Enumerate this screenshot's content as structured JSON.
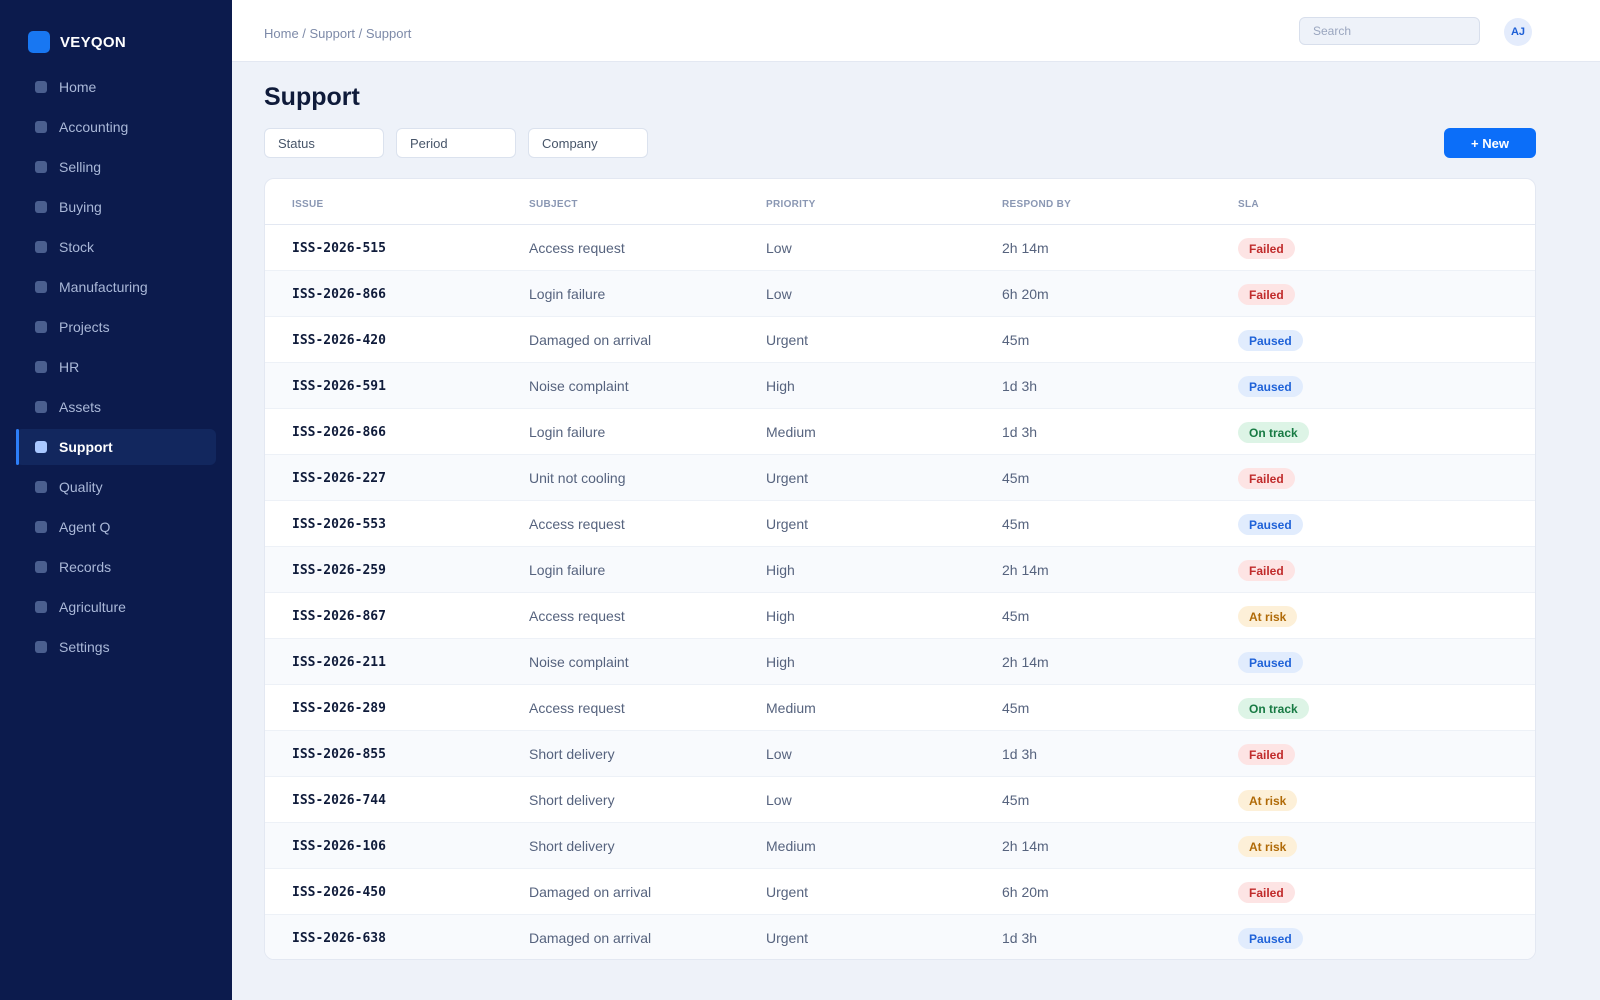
{
  "brand": {
    "name": "VEYQON"
  },
  "sidebar": {
    "items": [
      {
        "label": "Home",
        "name": "home"
      },
      {
        "label": "Accounting",
        "name": "accounting"
      },
      {
        "label": "Selling",
        "name": "selling"
      },
      {
        "label": "Buying",
        "name": "buying"
      },
      {
        "label": "Stock",
        "name": "stock"
      },
      {
        "label": "Manufacturing",
        "name": "manufacturing"
      },
      {
        "label": "Projects",
        "name": "projects"
      },
      {
        "label": "HR",
        "name": "hr"
      },
      {
        "label": "Assets",
        "name": "assets"
      },
      {
        "label": "Support",
        "name": "support",
        "active": true
      },
      {
        "label": "Quality",
        "name": "quality"
      },
      {
        "label": "Agent Q",
        "name": "agent-q"
      },
      {
        "label": "Records",
        "name": "records"
      },
      {
        "label": "Agriculture",
        "name": "agriculture"
      },
      {
        "label": "Settings",
        "name": "settings"
      }
    ]
  },
  "header": {
    "breadcrumb": "Home / Support / Support",
    "search_placeholder": "Search",
    "avatar_initials": "AJ"
  },
  "main": {
    "title": "Support",
    "filters": [
      "Status",
      "Period",
      "Company"
    ],
    "new_label": "+ New"
  },
  "table": {
    "columns": [
      "ISSUE",
      "SUBJECT",
      "PRIORITY",
      "RESPOND BY",
      "SLA"
    ],
    "rows": [
      {
        "issue": "ISS-2026-515",
        "subject": "Access request",
        "priority": "Low",
        "respond_by": "2h 14m",
        "sla": "Failed"
      },
      {
        "issue": "ISS-2026-866",
        "subject": "Login failure",
        "priority": "Low",
        "respond_by": "6h 20m",
        "sla": "Failed"
      },
      {
        "issue": "ISS-2026-420",
        "subject": "Damaged on arrival",
        "priority": "Urgent",
        "respond_by": "45m",
        "sla": "Paused"
      },
      {
        "issue": "ISS-2026-591",
        "subject": "Noise complaint",
        "priority": "High",
        "respond_by": "1d 3h",
        "sla": "Paused"
      },
      {
        "issue": "ISS-2026-866",
        "subject": "Login failure",
        "priority": "Medium",
        "respond_by": "1d 3h",
        "sla": "On track"
      },
      {
        "issue": "ISS-2026-227",
        "subject": "Unit not cooling",
        "priority": "Urgent",
        "respond_by": "45m",
        "sla": "Failed"
      },
      {
        "issue": "ISS-2026-553",
        "subject": "Access request",
        "priority": "Urgent",
        "respond_by": "45m",
        "sla": "Paused"
      },
      {
        "issue": "ISS-2026-259",
        "subject": "Login failure",
        "priority": "High",
        "respond_by": "2h 14m",
        "sla": "Failed"
      },
      {
        "issue": "ISS-2026-867",
        "subject": "Access request",
        "priority": "High",
        "respond_by": "45m",
        "sla": "At risk"
      },
      {
        "issue": "ISS-2026-211",
        "subject": "Noise complaint",
        "priority": "High",
        "respond_by": "2h 14m",
        "sla": "Paused"
      },
      {
        "issue": "ISS-2026-289",
        "subject": "Access request",
        "priority": "Medium",
        "respond_by": "45m",
        "sla": "On track"
      },
      {
        "issue": "ISS-2026-855",
        "subject": "Short delivery",
        "priority": "Low",
        "respond_by": "1d 3h",
        "sla": "Failed"
      },
      {
        "issue": "ISS-2026-744",
        "subject": "Short delivery",
        "priority": "Low",
        "respond_by": "45m",
        "sla": "At risk"
      },
      {
        "issue": "ISS-2026-106",
        "subject": "Short delivery",
        "priority": "Medium",
        "respond_by": "2h 14m",
        "sla": "At risk"
      },
      {
        "issue": "ISS-2026-450",
        "subject": "Damaged on arrival",
        "priority": "Urgent",
        "respond_by": "6h 20m",
        "sla": "Failed"
      },
      {
        "issue": "ISS-2026-638",
        "subject": "Damaged on arrival",
        "priority": "Urgent",
        "respond_by": "1d 3h",
        "sla": "Paused"
      }
    ]
  },
  "colors": {
    "sidebar_bg": "#0c1b4d",
    "accent": "#0b6ef9",
    "sla_failed": "#c02b2b",
    "sla_paused": "#1f62d8",
    "sla_on_track": "#177a43",
    "sla_at_risk": "#b06a07"
  },
  "icons": {
    "brand": "brand-logo-icon",
    "nav_item": "nav-square-icon"
  }
}
